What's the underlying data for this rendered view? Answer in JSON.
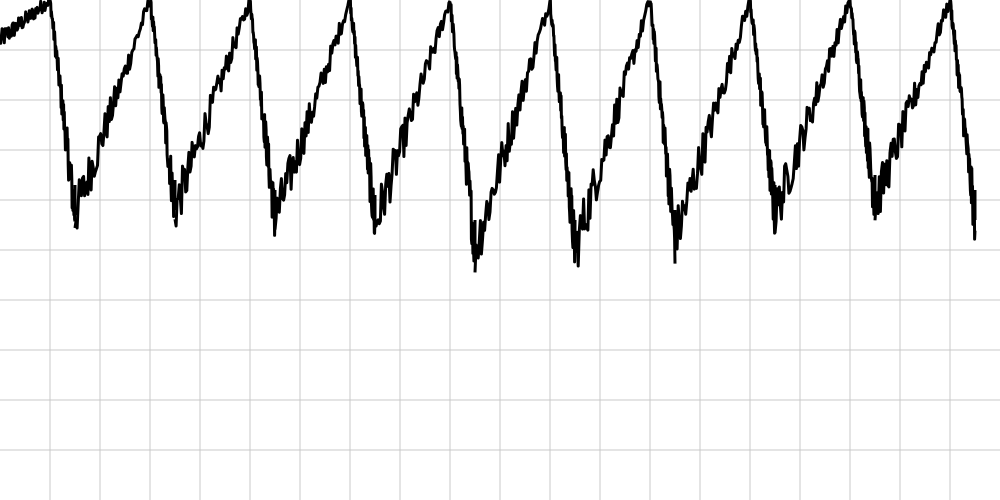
{
  "chart_data": {
    "type": "line",
    "title": "",
    "xlabel": "",
    "ylabel": "",
    "xlim": [
      0,
      20
    ],
    "ylim": [
      0,
      10
    ],
    "grid": true,
    "legend": "none",
    "series": [
      {
        "values_description_free": true,
        "values": {
          "peaks": [
            {
              "x": 0.0,
              "y": 9.2
            },
            {
              "x": 1.0,
              "y": 10.0
            },
            {
              "x": 3.0,
              "y": 10.0
            },
            {
              "x": 5.0,
              "y": 10.0
            },
            {
              "x": 7.0,
              "y": 10.0
            },
            {
              "x": 9.0,
              "y": 10.0
            },
            {
              "x": 11.0,
              "y": 10.0
            },
            {
              "x": 13.0,
              "y": 10.0
            },
            {
              "x": 15.0,
              "y": 10.0
            },
            {
              "x": 17.0,
              "y": 10.0
            },
            {
              "x": 19.0,
              "y": 10.0
            }
          ],
          "troughs": [
            {
              "x": 1.5,
              "y": 5.7
            },
            {
              "x": 3.5,
              "y": 5.8
            },
            {
              "x": 5.5,
              "y": 5.6
            },
            {
              "x": 7.5,
              "y": 5.5
            },
            {
              "x": 9.5,
              "y": 5.0
            },
            {
              "x": 11.5,
              "y": 5.0
            },
            {
              "x": 13.5,
              "y": 5.2
            },
            {
              "x": 15.5,
              "y": 5.7
            },
            {
              "x": 17.5,
              "y": 5.9
            },
            {
              "x": 19.5,
              "y": 5.6
            }
          ]
        }
      }
    ]
  },
  "colors": {
    "line": "#000000",
    "grid": "#c8c8c8",
    "background": "#ffffff"
  }
}
